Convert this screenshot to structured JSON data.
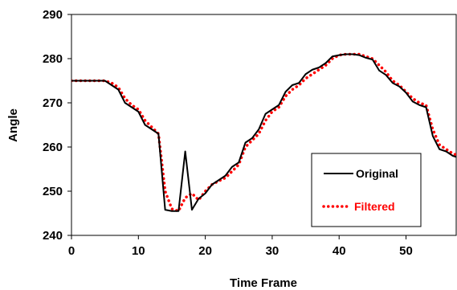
{
  "chart_data": {
    "type": "line",
    "xlabel": "Time Frame",
    "ylabel": "Angle",
    "xlim": [
      0,
      57.5
    ],
    "ylim": [
      240,
      290
    ],
    "xticks": [
      "0",
      "10",
      "20",
      "30",
      "40",
      "50"
    ],
    "yticks": [
      "240",
      "250",
      "260",
      "270",
      "280",
      "290"
    ],
    "grid": false,
    "legend_position": "bottom-right",
    "series": [
      {
        "name": "Original",
        "color": "#000000",
        "style": "solid",
        "x": [
          0,
          1,
          2,
          3,
          4,
          5,
          6,
          7,
          8,
          9,
          10,
          11,
          12,
          13,
          14,
          15,
          16,
          17,
          18,
          19,
          20,
          21,
          22,
          23,
          24,
          25,
          26,
          27,
          28,
          29,
          30,
          31,
          32,
          33,
          34,
          35,
          36,
          37,
          38,
          39,
          40,
          41,
          42,
          43,
          44,
          45,
          46,
          47,
          48,
          49,
          50,
          51,
          52,
          53,
          54,
          55,
          56,
          57,
          58
        ],
        "y": [
          275,
          275,
          275,
          275,
          275,
          275,
          274,
          273,
          270,
          269,
          268,
          265,
          264,
          263,
          245.8,
          245.5,
          245.5,
          259,
          245.8,
          248.3,
          249.5,
          251.5,
          252.5,
          253.5,
          255.5,
          256.5,
          261,
          262,
          264,
          267.5,
          268.5,
          269.5,
          272.5,
          274,
          274.5,
          276.5,
          277.5,
          278,
          279,
          280.5,
          280.8,
          281,
          281,
          280.8,
          280.2,
          279.8,
          277.3,
          276.3,
          274.5,
          273.7,
          272.3,
          270.3,
          269.5,
          269,
          262.5,
          259.5,
          259,
          258,
          257.5
        ]
      },
      {
        "name": "Filtered",
        "color": "#ff0000",
        "style": "dotted",
        "x": [
          0,
          1,
          2,
          3,
          4,
          5,
          6,
          7,
          8,
          9,
          10,
          11,
          12,
          13,
          14,
          15,
          16,
          17,
          18,
          19,
          20,
          21,
          22,
          23,
          24,
          25,
          26,
          27,
          28,
          29,
          30,
          31,
          32,
          33,
          34,
          35,
          36,
          37,
          38,
          39,
          40,
          41,
          42,
          43,
          44,
          45,
          46,
          47,
          48,
          49,
          50,
          51,
          52,
          53,
          54,
          55,
          56,
          57,
          58
        ],
        "y": [
          275,
          275,
          275,
          275,
          275,
          275,
          274.5,
          273.5,
          271,
          269.5,
          268.5,
          266,
          264.5,
          263,
          250,
          246,
          245.5,
          248.5,
          249.5,
          248,
          250,
          251.5,
          252.3,
          253,
          254.5,
          256,
          260,
          261.5,
          263,
          266,
          268,
          269,
          271.5,
          273,
          274,
          275.5,
          276.5,
          277.5,
          278.5,
          280,
          280.8,
          281,
          281,
          281,
          280.5,
          280,
          278.5,
          277,
          275,
          274,
          272.5,
          271,
          270,
          269.5,
          264,
          260.5,
          259.5,
          258.5,
          258
        ]
      }
    ]
  }
}
